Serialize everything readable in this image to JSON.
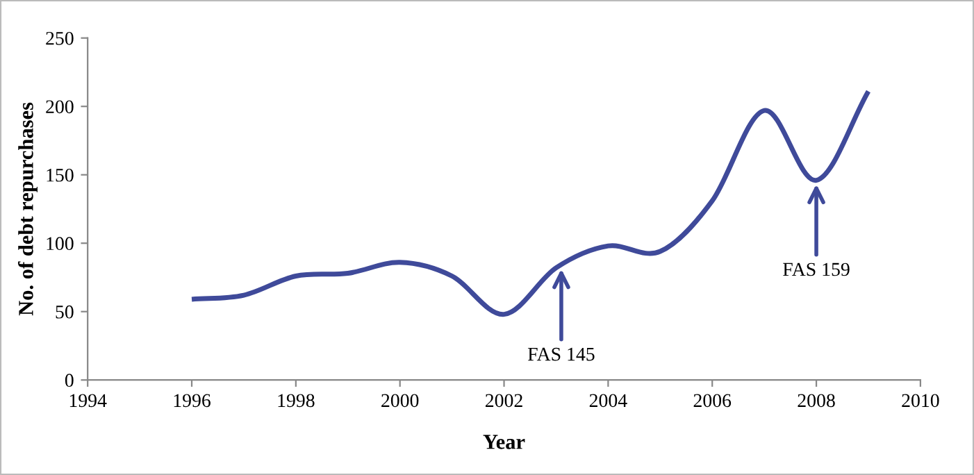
{
  "chart_data": {
    "type": "line",
    "xlabel": "Year",
    "ylabel": "No. of debt repurchases",
    "x": [
      1996,
      1997,
      1998,
      1999,
      2000,
      2001,
      2002,
      2003,
      2004,
      2005,
      2006,
      2007,
      2008,
      2009
    ],
    "series": [
      {
        "color": "#3f4a9a",
        "values": [
          59,
          62,
          76,
          78,
          86,
          76,
          48,
          82,
          98,
          94,
          131,
          197,
          146,
          211
        ]
      }
    ],
    "xlim": [
      1994,
      2010
    ],
    "xticks": [
      1994,
      1996,
      1998,
      2000,
      2002,
      2004,
      2006,
      2008,
      2010
    ],
    "ylim": [
      0,
      250
    ],
    "yticks": [
      0,
      50,
      100,
      150,
      200,
      250
    ],
    "annotations": [
      {
        "text": "FAS 145",
        "x": 2003.1,
        "y": 84
      },
      {
        "text": "FAS 159",
        "x": 2008,
        "y": 146
      }
    ],
    "grid": false,
    "marker": "none",
    "line_style": "solid"
  }
}
